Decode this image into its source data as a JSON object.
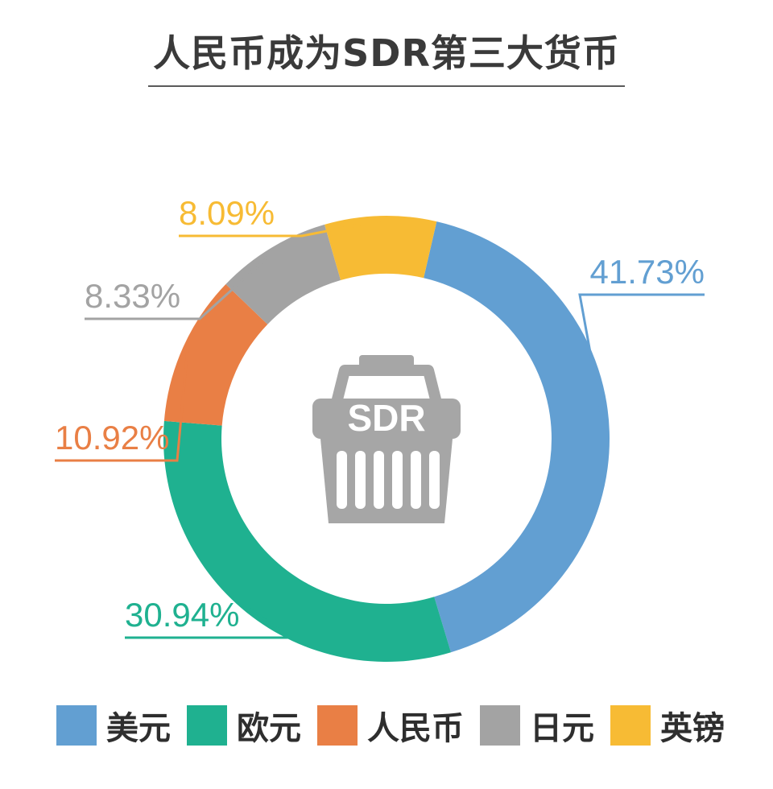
{
  "chart_data": {
    "type": "pie",
    "title": "人民币成为SDR第三大货币",
    "center_label": "SDR",
    "series": [
      {
        "name": "美元",
        "value": 41.73,
        "label": "41.73%",
        "color": "#629fd2"
      },
      {
        "name": "欧元",
        "value": 30.94,
        "label": "30.94%",
        "color": "#1fb190"
      },
      {
        "name": "人民币",
        "value": 10.92,
        "label": "10.92%",
        "color": "#e97f45"
      },
      {
        "name": "日元",
        "value": 8.33,
        "label": "8.33%",
        "color": "#a3a3a3"
      },
      {
        "name": "英镑",
        "value": 8.09,
        "label": "8.09%",
        "color": "#f7bb34"
      }
    ],
    "legend_position": "bottom",
    "style": "donut"
  }
}
